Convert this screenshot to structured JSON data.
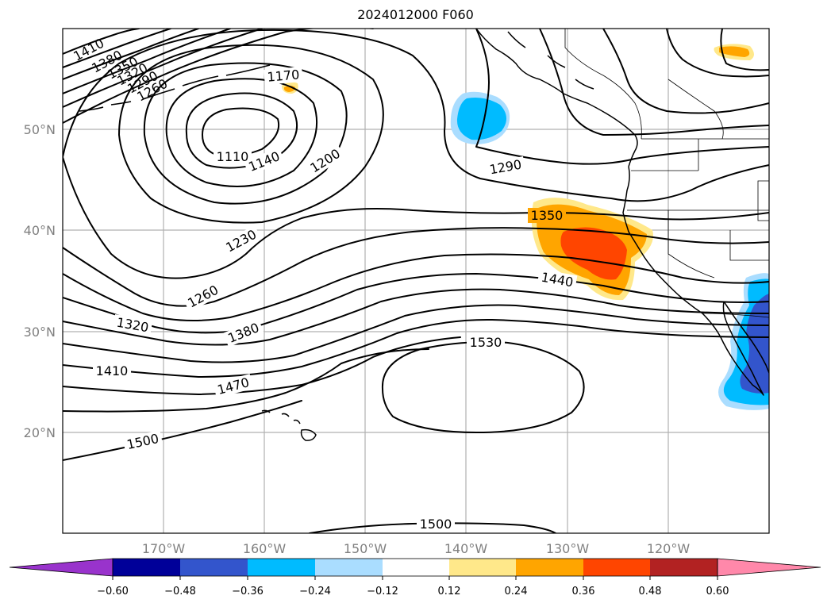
{
  "title": "2024012000 F060",
  "map": {
    "lat_labels": [
      "50°N",
      "40°N",
      "30°N",
      "20°N"
    ],
    "lon_labels": [
      "170°W",
      "160°W",
      "150°W",
      "140°W",
      "130°W",
      "120°W"
    ],
    "contour_labels": [
      "1410",
      "1380",
      "1350",
      "1320",
      "1290",
      "1260",
      "1170",
      "1110",
      "1140",
      "1200",
      "1290",
      "1350",
      "1230",
      "1440",
      "1260",
      "1320",
      "1380",
      "1530",
      "1410",
      "1470",
      "1500",
      "1500"
    ],
    "contour_color": "#000000",
    "grid_color": "#b0b0b0"
  },
  "colorbar": {
    "ticks": [
      "−0.60",
      "−0.48",
      "−0.36",
      "−0.24",
      "−0.12",
      "0.12",
      "0.24",
      "0.36",
      "0.48",
      "0.60"
    ],
    "colors": [
      "#9933cc",
      "#000099",
      "#3355cc",
      "#00bbff",
      "#aaddff",
      "#ffffff",
      "#ffe88a",
      "#ffa500",
      "#ff4500",
      "#b22222",
      "#ff88aa"
    ]
  }
}
